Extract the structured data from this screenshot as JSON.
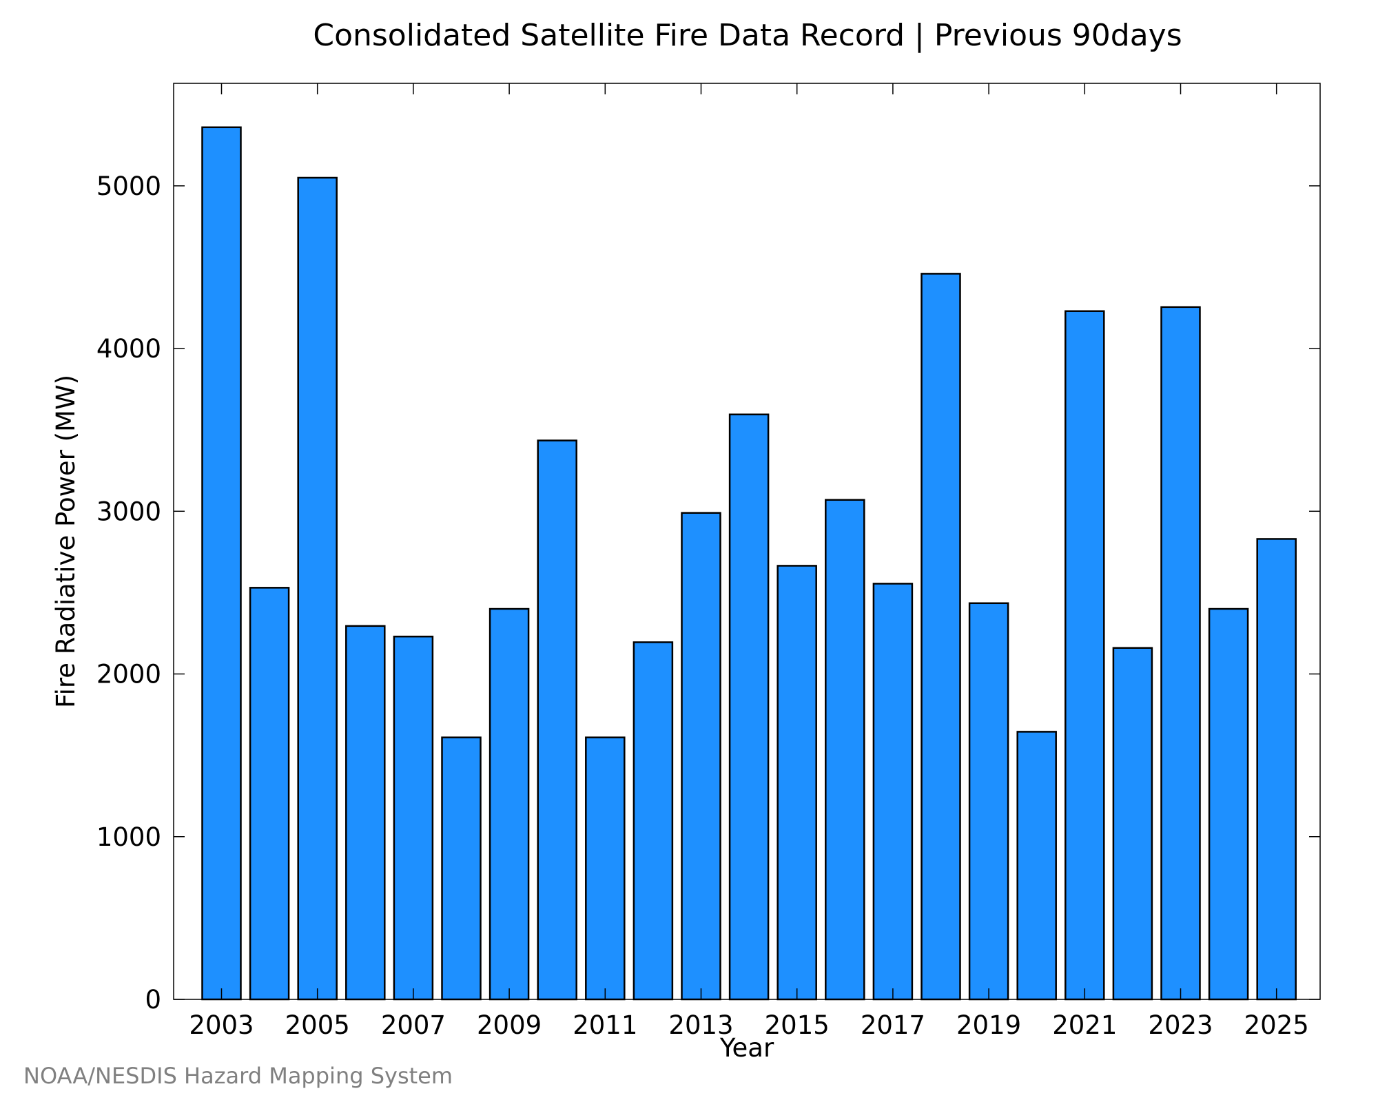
{
  "chart_data": {
    "type": "bar",
    "title": "Consolidated Satellite Fire Data Record | Previous 90days",
    "xlabel": "Year",
    "ylabel": "Fire Radiative Power (MW)",
    "credit": "NOAA/NESDIS Hazard Mapping System",
    "categories": [
      "2003",
      "2004",
      "2005",
      "2006",
      "2007",
      "2008",
      "2009",
      "2010",
      "2011",
      "2012",
      "2013",
      "2014",
      "2015",
      "2016",
      "2017",
      "2018",
      "2019",
      "2020",
      "2021",
      "2022",
      "2023",
      "2024",
      "2025"
    ],
    "values": [
      5360,
      2530,
      5050,
      2295,
      2230,
      1610,
      2400,
      3435,
      1610,
      2195,
      2990,
      3595,
      2665,
      3070,
      2555,
      4460,
      2435,
      1645,
      4230,
      2160,
      4255,
      2400,
      2830
    ],
    "xticks": [
      "2003",
      "2005",
      "2007",
      "2009",
      "2011",
      "2013",
      "2015",
      "2017",
      "2019",
      "2021",
      "2023",
      "2025"
    ],
    "yticks": [
      0,
      1000,
      2000,
      3000,
      4000,
      5000
    ],
    "ylim": [
      0,
      5630
    ],
    "bar_color": "#1e90ff",
    "bar_edge_color": "#000000",
    "grid": false,
    "legend": "none"
  }
}
